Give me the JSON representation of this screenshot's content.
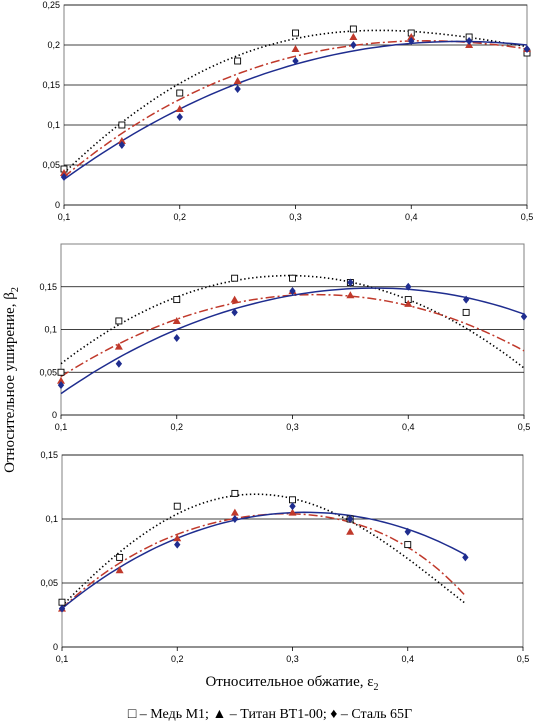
{
  "figure": {
    "ylabel": "Относительное уширение, β",
    "ylabel_sub": "2",
    "xlabel": "Относительное обжатие, ε",
    "xlabel_sub": "2",
    "legend": [
      {
        "symbol": "□",
        "text": " – Медь М1; "
      },
      {
        "symbol": "▲",
        "text": " – Титан ВТ1-00; "
      },
      {
        "symbol": "♦",
        "text": " – Сталь 65Г"
      }
    ]
  },
  "chart_data": [
    {
      "type": "scatter",
      "xlim": [
        0.1,
        0.5
      ],
      "ylim": [
        0,
        0.25
      ],
      "xticks": [
        "0,1",
        "0,2",
        "0,3",
        "0,4",
        "0,5"
      ],
      "yticks": [
        "0",
        "0,05",
        "0,1",
        "0,15",
        "0,2",
        "0,25"
      ],
      "grid": "horizontal",
      "series": [
        {
          "marker": "square-open",
          "color": "#000000",
          "trend": "dotted",
          "x": [
            0.1,
            0.15,
            0.2,
            0.25,
            0.3,
            0.35,
            0.4,
            0.45,
            0.5
          ],
          "y": [
            0.045,
            0.1,
            0.14,
            0.18,
            0.215,
            0.22,
            0.215,
            0.21,
            0.19
          ],
          "fit": {
            "x": [
              0.1,
              0.2,
              0.3,
              0.4,
              0.5
            ],
            "y": [
              0.04,
              0.152,
              0.208,
              0.217,
              0.198
            ]
          }
        },
        {
          "marker": "triangle",
          "color": "#c0392b",
          "trend": "dashdot",
          "x": [
            0.1,
            0.15,
            0.2,
            0.25,
            0.3,
            0.35,
            0.4,
            0.45,
            0.5
          ],
          "y": [
            0.04,
            0.08,
            0.12,
            0.155,
            0.195,
            0.21,
            0.21,
            0.2,
            0.195
          ],
          "fit": {
            "x": [
              0.1,
              0.2,
              0.3,
              0.4,
              0.5
            ],
            "y": [
              0.035,
              0.132,
              0.186,
              0.205,
              0.195
            ]
          }
        },
        {
          "marker": "diamond",
          "color": "#1f2d8f",
          "trend": "solid",
          "x": [
            0.1,
            0.15,
            0.2,
            0.25,
            0.3,
            0.35,
            0.4,
            0.45,
            0.5
          ],
          "y": [
            0.035,
            0.075,
            0.11,
            0.145,
            0.18,
            0.2,
            0.205,
            0.205,
            0.195
          ],
          "fit": {
            "x": [
              0.1,
              0.2,
              0.3,
              0.4,
              0.5
            ],
            "y": [
              0.032,
              0.12,
              0.176,
              0.202,
              0.2
            ]
          }
        }
      ]
    },
    {
      "type": "scatter",
      "xlim": [
        0.1,
        0.5
      ],
      "ylim": [
        0,
        0.2
      ],
      "xticks": [
        "0,1",
        "0,2",
        "0,3",
        "0,4",
        "0,5"
      ],
      "yticks": [
        "0",
        "0,05",
        "0,1",
        "0,15"
      ],
      "grid": "horizontal",
      "series": [
        {
          "marker": "square-open",
          "color": "#000000",
          "trend": "dotted",
          "x": [
            0.1,
            0.15,
            0.2,
            0.25,
            0.3,
            0.35,
            0.4,
            0.45
          ],
          "y": [
            0.05,
            0.11,
            0.135,
            0.16,
            0.16,
            0.155,
            0.135,
            0.12
          ],
          "fit": {
            "x": [
              0.1,
              0.2,
              0.3,
              0.4,
              0.5
            ],
            "y": [
              0.06,
              0.138,
              0.163,
              0.135,
              0.055
            ]
          }
        },
        {
          "marker": "triangle",
          "color": "#c0392b",
          "trend": "dashdot",
          "x": [
            0.1,
            0.15,
            0.2,
            0.25,
            0.3,
            0.35,
            0.4
          ],
          "y": [
            0.04,
            0.08,
            0.11,
            0.135,
            0.145,
            0.14,
            0.13
          ],
          "fit": {
            "x": [
              0.1,
              0.2,
              0.3,
              0.4,
              0.5
            ],
            "y": [
              0.045,
              0.112,
              0.14,
              0.128,
              0.075
            ]
          }
        },
        {
          "marker": "diamond",
          "color": "#1f2d8f",
          "trend": "solid",
          "x": [
            0.1,
            0.15,
            0.2,
            0.25,
            0.3,
            0.35,
            0.4,
            0.45,
            0.5
          ],
          "y": [
            0.035,
            0.06,
            0.09,
            0.12,
            0.145,
            0.155,
            0.15,
            0.135,
            0.115
          ],
          "fit": {
            "x": [
              0.1,
              0.2,
              0.3,
              0.4,
              0.5
            ],
            "y": [
              0.025,
              0.1,
              0.14,
              0.147,
              0.118
            ]
          }
        }
      ]
    },
    {
      "type": "scatter",
      "xlim": [
        0.1,
        0.5
      ],
      "ylim": [
        0,
        0.15
      ],
      "xticks": [
        "0,1",
        "0,2",
        "0,3",
        "0,4",
        "0,5"
      ],
      "yticks": [
        "0",
        "0,05",
        "0,1",
        "0,15"
      ],
      "grid": "horizontal",
      "series": [
        {
          "marker": "square-open",
          "color": "#000000",
          "trend": "dotted",
          "x": [
            0.1,
            0.15,
            0.2,
            0.25,
            0.3,
            0.35,
            0.4
          ],
          "y": [
            0.035,
            0.07,
            0.11,
            0.12,
            0.115,
            0.1,
            0.08
          ],
          "fit": {
            "x": [
              0.1,
              0.2,
              0.3,
              0.4,
              0.45
            ],
            "y": [
              0.032,
              0.104,
              0.116,
              0.069,
              0.034
            ]
          }
        },
        {
          "marker": "triangle",
          "color": "#c0392b",
          "trend": "dashdot",
          "x": [
            0.1,
            0.15,
            0.2,
            0.25,
            0.3,
            0.35
          ],
          "y": [
            0.03,
            0.06,
            0.085,
            0.105,
            0.105,
            0.09
          ],
          "fit": {
            "x": [
              0.1,
              0.2,
              0.3,
              0.4,
              0.45
            ],
            "y": [
              0.03,
              0.088,
              0.104,
              0.078,
              0.04
            ]
          }
        },
        {
          "marker": "diamond",
          "color": "#1f2d8f",
          "trend": "solid",
          "x": [
            0.1,
            0.2,
            0.25,
            0.3,
            0.35,
            0.4,
            0.45
          ],
          "y": [
            0.03,
            0.08,
            0.1,
            0.11,
            0.1,
            0.09,
            0.07
          ],
          "fit": {
            "x": [
              0.1,
              0.2,
              0.3,
              0.4,
              0.45
            ],
            "y": [
              0.03,
              0.085,
              0.105,
              0.092,
              0.072
            ]
          }
        }
      ]
    }
  ]
}
